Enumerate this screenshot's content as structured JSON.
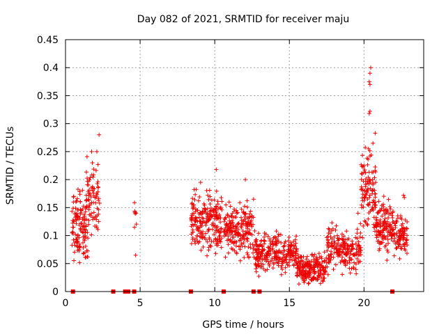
{
  "chart_data": {
    "type": "scatter",
    "title": "Day 082 of 2021, SRMTID for receiver maju",
    "xlabel": "GPS time / hours",
    "ylabel": "SRMTID / TECUs",
    "xlim": [
      0,
      24
    ],
    "ylim": [
      0,
      0.45
    ],
    "x_ticks": [
      0,
      5,
      10,
      15,
      20
    ],
    "y_ticks": [
      0,
      0.05,
      0.1,
      0.15,
      0.2,
      0.25,
      0.3,
      0.35,
      0.4,
      0.45
    ],
    "x_tick_labels": [
      "0",
      "5",
      "10",
      "15",
      "20"
    ],
    "y_tick_labels": [
      "0",
      "0.05",
      "0.1",
      "0.15",
      "0.2",
      "0.25",
      "0.3",
      "0.35",
      "0.4",
      "0.45"
    ],
    "grid": true,
    "marker": "+",
    "color": "#ee0000",
    "zero_marks_x": [
      0.5,
      3.2,
      4.0,
      4.2,
      4.6,
      8.4,
      10.6,
      12.6,
      13.0,
      21.9
    ],
    "clusters": [
      {
        "x_range": [
          0.4,
          1.5
        ],
        "y_center": 0.115,
        "y_spread": 0.04,
        "count": 120
      },
      {
        "x_range": [
          1.3,
          2.3
        ],
        "y_center": 0.16,
        "y_spread": 0.05,
        "count": 80
      },
      {
        "x_range": [
          4.6,
          4.8
        ],
        "y_center": 0.14,
        "y_spread": 0.02,
        "count": 8
      },
      {
        "x_range": [
          8.4,
          10.5
        ],
        "y_center": 0.125,
        "y_spread": 0.035,
        "count": 220
      },
      {
        "x_range": [
          10.6,
          12.6
        ],
        "y_center": 0.11,
        "y_spread": 0.035,
        "count": 200
      },
      {
        "x_range": [
          12.6,
          15.5
        ],
        "y_center": 0.07,
        "y_spread": 0.022,
        "count": 260
      },
      {
        "x_range": [
          15.5,
          17.5
        ],
        "y_center": 0.04,
        "y_spread": 0.018,
        "count": 200
      },
      {
        "x_range": [
          17.5,
          19.8
        ],
        "y_center": 0.075,
        "y_spread": 0.025,
        "count": 200
      },
      {
        "x_range": [
          19.8,
          20.8
        ],
        "y_center": 0.18,
        "y_spread": 0.05,
        "count": 110
      },
      {
        "x_range": [
          20.8,
          22.0
        ],
        "y_center": 0.12,
        "y_spread": 0.03,
        "count": 130
      },
      {
        "x_range": [
          22.0,
          22.9
        ],
        "y_center": 0.1,
        "y_spread": 0.025,
        "count": 90
      }
    ],
    "spikes": [
      {
        "x": 0.55,
        "y": 0.17
      },
      {
        "x": 0.7,
        "y": 0.16
      },
      {
        "x": 2.25,
        "y": 0.28
      },
      {
        "x": 2.1,
        "y": 0.25
      },
      {
        "x": 1.75,
        "y": 0.25
      },
      {
        "x": 1.8,
        "y": 0.23
      },
      {
        "x": 4.7,
        "y": 0.065
      },
      {
        "x": 10.1,
        "y": 0.218
      },
      {
        "x": 9.05,
        "y": 0.195
      },
      {
        "x": 12.05,
        "y": 0.2
      },
      {
        "x": 12.6,
        "y": 0.165
      },
      {
        "x": 20.45,
        "y": 0.4
      },
      {
        "x": 20.4,
        "y": 0.39
      },
      {
        "x": 20.35,
        "y": 0.375
      },
      {
        "x": 20.4,
        "y": 0.37
      },
      {
        "x": 20.4,
        "y": 0.322
      },
      {
        "x": 20.35,
        "y": 0.318
      },
      {
        "x": 20.75,
        "y": 0.283
      },
      {
        "x": 20.6,
        "y": 0.265
      },
      {
        "x": 20.0,
        "y": 0.225
      },
      {
        "x": 20.3,
        "y": 0.255
      },
      {
        "x": 22.65,
        "y": 0.172
      },
      {
        "x": 22.7,
        "y": 0.168
      },
      {
        "x": 16.3,
        "y": 0.015
      },
      {
        "x": 16.5,
        "y": 0.02
      },
      {
        "x": 19.6,
        "y": 0.14
      }
    ]
  }
}
